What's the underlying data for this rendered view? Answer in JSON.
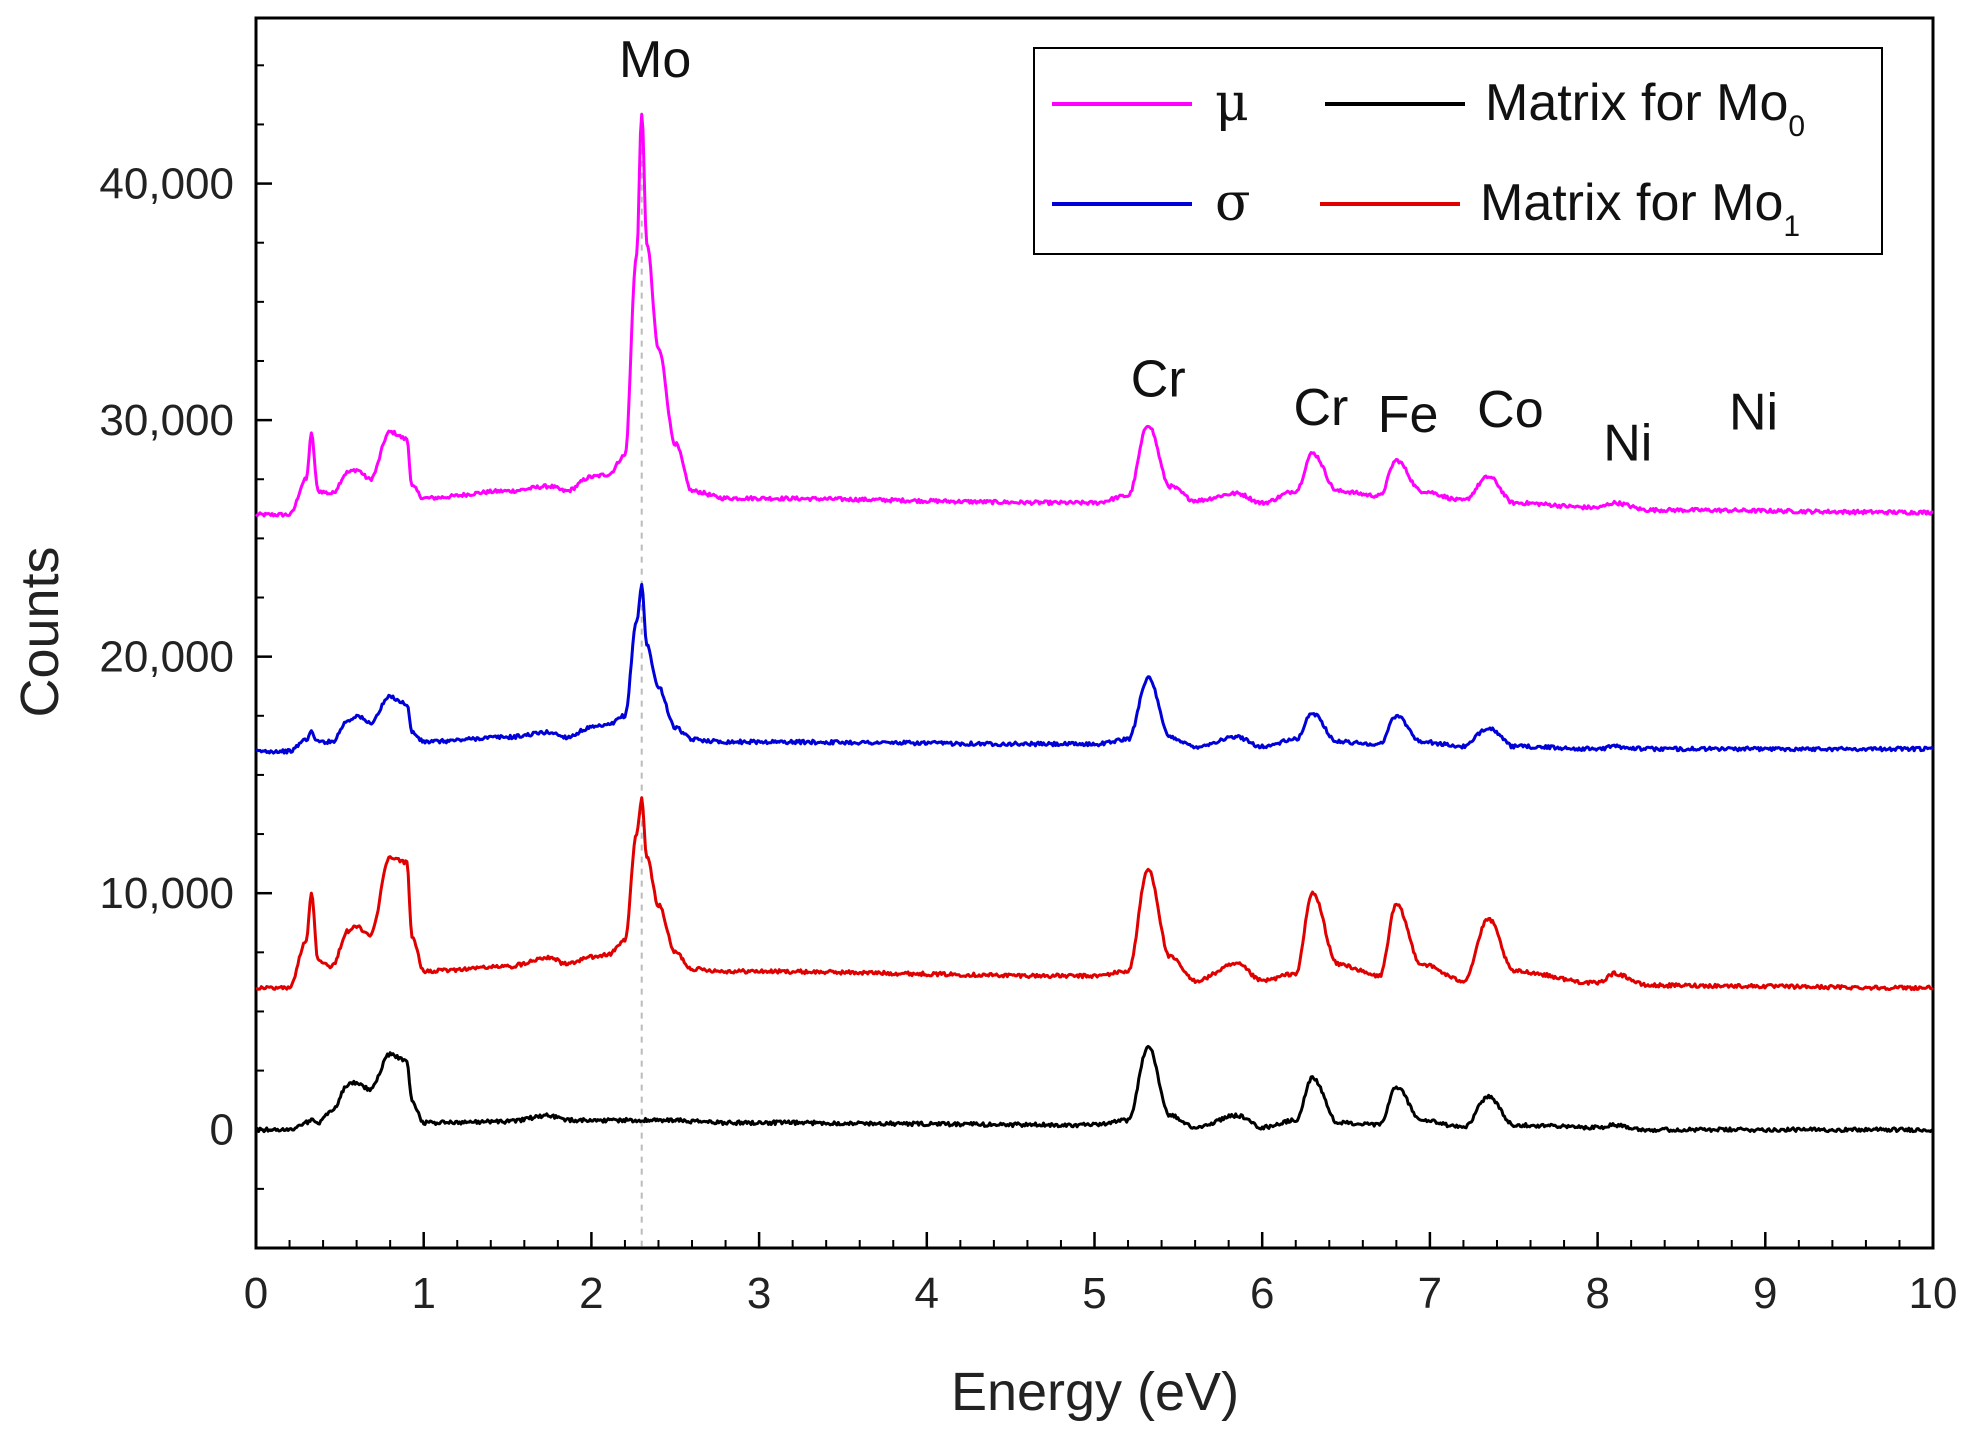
{
  "chart_data": {
    "type": "line",
    "xlabel": "Energy (eV)",
    "ylabel": "Counts",
    "xlim": [
      0,
      10
    ],
    "ylim": [
      -5000,
      47000
    ],
    "x_ticks": [
      0,
      1,
      2,
      3,
      4,
      5,
      6,
      7,
      8,
      9,
      10
    ],
    "x_tick_labels": [
      "0",
      "1",
      "2",
      "3",
      "4",
      "5",
      "6",
      "7",
      "8",
      "9",
      "10"
    ],
    "y_ticks": [
      0,
      10000,
      20000,
      30000,
      40000
    ],
    "y_tick_labels": [
      "0",
      "10,000",
      "20,000",
      "30,000",
      "40,000"
    ],
    "reference_line_x": 2.3,
    "series": [
      {
        "name": "μ",
        "color": "#ff00ff",
        "baseline": 26000,
        "x": [
          0.0,
          0.2,
          0.3,
          0.33,
          0.37,
          0.45,
          0.55,
          0.6,
          0.68,
          0.8,
          0.9,
          0.93,
          1.0,
          1.5,
          1.75,
          1.85,
          2.0,
          2.1,
          2.2,
          2.27,
          2.3,
          2.33,
          2.4,
          2.5,
          2.6,
          2.8,
          5.0,
          5.2,
          5.32,
          5.45,
          5.6,
          5.85,
          6.0,
          6.2,
          6.3,
          6.45,
          6.7,
          6.8,
          6.95,
          7.2,
          7.35,
          7.5,
          8.0,
          8.1,
          8.3,
          10.0
        ],
        "y": [
          26000,
          26000,
          27500,
          29400,
          27000,
          26900,
          27800,
          27900,
          27500,
          29500,
          29200,
          27200,
          26700,
          27000,
          27200,
          27000,
          27600,
          27700,
          28500,
          37000,
          43000,
          37500,
          33000,
          29000,
          27000,
          26700,
          26500,
          26800,
          29800,
          27200,
          26600,
          26900,
          26500,
          27000,
          28600,
          27000,
          26800,
          28300,
          27000,
          26600,
          27600,
          26500,
          26300,
          26500,
          26200,
          26100
        ]
      },
      {
        "name": "σ",
        "color": "#0000d8",
        "baseline": 16000,
        "x": [
          0.0,
          0.2,
          0.3,
          0.33,
          0.37,
          0.45,
          0.55,
          0.6,
          0.68,
          0.8,
          0.9,
          0.93,
          1.0,
          1.5,
          1.75,
          1.85,
          2.0,
          2.1,
          2.2,
          2.27,
          2.3,
          2.33,
          2.4,
          2.5,
          2.6,
          2.8,
          5.0,
          5.2,
          5.32,
          5.45,
          5.6,
          5.85,
          6.0,
          6.2,
          6.3,
          6.45,
          6.7,
          6.8,
          6.95,
          7.2,
          7.35,
          7.5,
          8.0,
          8.1,
          8.3,
          10.0
        ],
        "y": [
          16000,
          16000,
          16500,
          16800,
          16400,
          16400,
          17300,
          17500,
          17200,
          18300,
          18000,
          16800,
          16400,
          16600,
          16800,
          16600,
          17000,
          17100,
          17500,
          21500,
          23000,
          20500,
          18700,
          17000,
          16500,
          16400,
          16300,
          16500,
          19100,
          16600,
          16200,
          16600,
          16200,
          16500,
          17600,
          16400,
          16300,
          17500,
          16400,
          16200,
          17000,
          16200,
          16100,
          16200,
          16100,
          16100
        ]
      },
      {
        "name": "Matrix for Mo1",
        "color": "#e00000",
        "baseline": 6000,
        "x": [
          0.0,
          0.2,
          0.3,
          0.33,
          0.37,
          0.45,
          0.55,
          0.6,
          0.68,
          0.8,
          0.9,
          0.93,
          1.0,
          1.5,
          1.75,
          1.85,
          2.0,
          2.1,
          2.2,
          2.27,
          2.3,
          2.33,
          2.4,
          2.5,
          2.6,
          2.8,
          5.0,
          5.2,
          5.32,
          5.45,
          5.6,
          5.85,
          6.0,
          6.2,
          6.3,
          6.45,
          6.7,
          6.8,
          6.95,
          7.2,
          7.35,
          7.5,
          8.0,
          8.1,
          8.3,
          10.0
        ],
        "y": [
          6000,
          6000,
          8000,
          10000,
          7200,
          6900,
          8400,
          8600,
          8200,
          11500,
          11300,
          8200,
          6700,
          6900,
          7300,
          7000,
          7300,
          7400,
          8000,
          12500,
          14000,
          11500,
          9500,
          7500,
          6800,
          6700,
          6500,
          6700,
          11000,
          7300,
          6300,
          7000,
          6300,
          6600,
          10000,
          7000,
          6500,
          9500,
          7000,
          6300,
          8900,
          6700,
          6200,
          6600,
          6100,
          6000
        ]
      },
      {
        "name": "Matrix for Mo0",
        "color": "#000000",
        "baseline": 0,
        "x": [
          0.0,
          0.2,
          0.3,
          0.33,
          0.37,
          0.45,
          0.55,
          0.6,
          0.68,
          0.8,
          0.9,
          0.93,
          1.0,
          1.5,
          1.75,
          1.85,
          2.0,
          2.1,
          2.2,
          2.27,
          2.3,
          2.33,
          2.4,
          2.5,
          2.6,
          2.8,
          5.0,
          5.2,
          5.32,
          5.45,
          5.6,
          5.85,
          6.0,
          6.2,
          6.3,
          6.45,
          6.7,
          6.8,
          6.95,
          7.2,
          7.35,
          7.5,
          8.0,
          8.1,
          8.3,
          10.0
        ],
        "y": [
          0,
          0,
          300,
          400,
          300,
          800,
          1900,
          2000,
          1700,
          3200,
          2900,
          1200,
          300,
          350,
          600,
          400,
          400,
          400,
          400,
          400,
          400,
          400,
          400,
          400,
          350,
          300,
          200,
          400,
          3500,
          600,
          100,
          600,
          100,
          400,
          2200,
          300,
          200,
          1800,
          400,
          100,
          1400,
          200,
          100,
          200,
          0,
          0
        ]
      }
    ],
    "annotations": [
      {
        "text": "Mo",
        "x": 2.38,
        "y": 44500
      },
      {
        "text": "Cr",
        "x": 5.38,
        "y": 31000
      },
      {
        "text": "Cr",
        "x": 6.35,
        "y": 29800
      },
      {
        "text": "Fe",
        "x": 6.87,
        "y": 29500
      },
      {
        "text": "Co",
        "x": 7.48,
        "y": 29700
      },
      {
        "text": "Ni",
        "x": 8.18,
        "y": 28300
      },
      {
        "text": "Ni",
        "x": 8.93,
        "y": 29600
      }
    ],
    "legend": {
      "position": "top-right",
      "entries": [
        {
          "label": "μ",
          "color": "#ff00ff"
        },
        {
          "label": "Matrix for Mo",
          "subscript": "0",
          "color": "#000000"
        },
        {
          "label": "σ",
          "color": "#0000d8"
        },
        {
          "label": "Matrix for Mo",
          "subscript": "1",
          "color": "#e00000"
        }
      ]
    }
  }
}
